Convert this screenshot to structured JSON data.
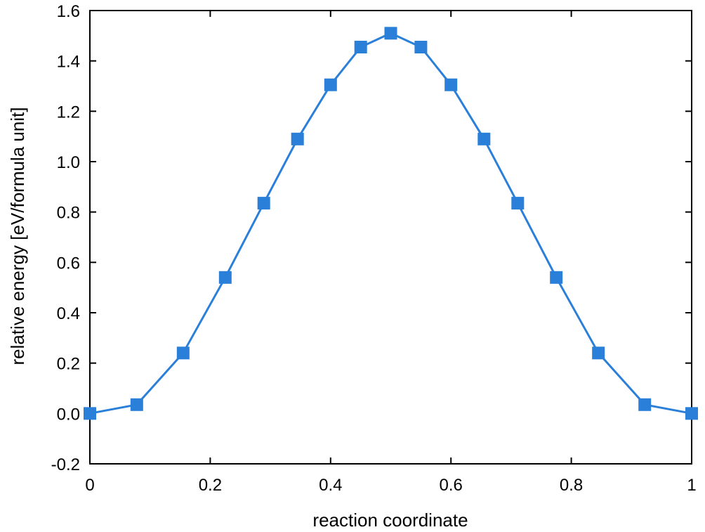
{
  "chart_data": {
    "type": "line",
    "title": "",
    "xlabel": "reaction coordinate",
    "ylabel": "relative energy [eV/formula unit]",
    "xlim": [
      0,
      1
    ],
    "ylim": [
      -0.2,
      1.6
    ],
    "xticks": [
      0,
      0.2,
      0.4,
      0.6,
      0.8,
      1
    ],
    "xtick_labels": [
      "0",
      "0.2",
      "0.4",
      "0.6",
      "0.8",
      "1"
    ],
    "yticks": [
      -0.2,
      0.0,
      0.2,
      0.4,
      0.6,
      0.8,
      1.0,
      1.2,
      1.4,
      1.6
    ],
    "ytick_labels": [
      "-0.2",
      "0.0",
      "0.2",
      "0.4",
      "0.6",
      "0.8",
      "1.0",
      "1.2",
      "1.4",
      "1.6"
    ],
    "grid": false,
    "legend": "none",
    "series": [
      {
        "color": "#2a7fd8",
        "marker": "square",
        "x": [
          0,
          0.078,
          0.155,
          0.225,
          0.289,
          0.345,
          0.4,
          0.45,
          0.5,
          0.55,
          0.6,
          0.655,
          0.711,
          0.775,
          0.845,
          0.922,
          1
        ],
        "y": [
          0.0,
          0.035,
          0.24,
          0.54,
          0.835,
          1.09,
          1.305,
          1.455,
          1.51,
          1.455,
          1.305,
          1.09,
          0.835,
          0.54,
          0.24,
          0.035,
          0.0
        ]
      }
    ]
  }
}
